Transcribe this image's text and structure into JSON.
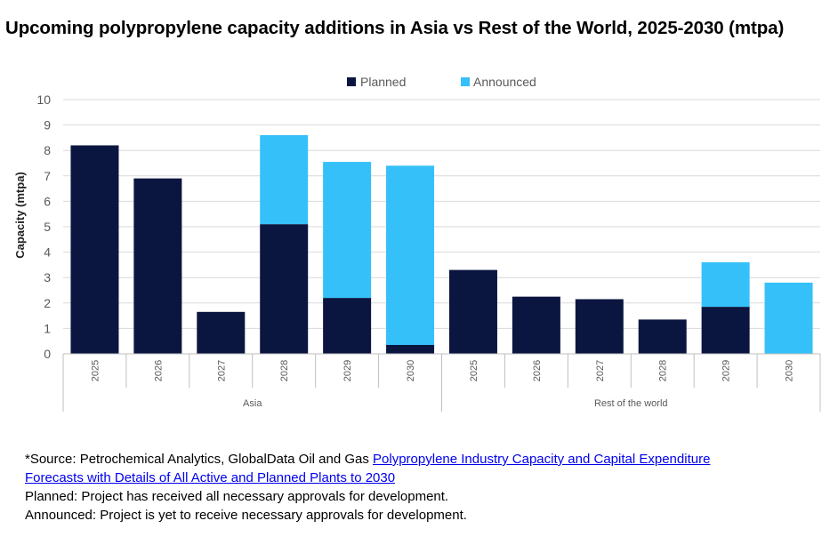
{
  "title": "Upcoming polypropylene capacity additions in Asia vs Rest of the World, 2025-2030 (mtpa)",
  "colors": {
    "planned": "#0b1640",
    "announced": "#35c0fa",
    "grid": "#d9d9d9",
    "axis": "#bfbfbf"
  },
  "chart_data": {
    "type": "bar",
    "stacked": true,
    "ylabel": "Capacity (mtpa)",
    "xlabel": "",
    "ylim": [
      0,
      10
    ],
    "yticks": [
      0,
      1,
      2,
      3,
      4,
      5,
      6,
      7,
      8,
      9,
      10
    ],
    "grid": true,
    "legend_position": "top",
    "groups": [
      "Asia",
      "Rest of the world"
    ],
    "categories": [
      "2025",
      "2026",
      "2027",
      "2028",
      "2029",
      "2030",
      "2025",
      "2026",
      "2027",
      "2028",
      "2029",
      "2030"
    ],
    "category_group": [
      "Asia",
      "Asia",
      "Asia",
      "Asia",
      "Asia",
      "Asia",
      "Rest of the world",
      "Rest of the world",
      "Rest of the world",
      "Rest of the world",
      "Rest of the world",
      "Rest of the world"
    ],
    "series": [
      {
        "name": "Planned",
        "values": [
          8.2,
          6.9,
          1.65,
          5.1,
          2.2,
          0.35,
          3.3,
          2.25,
          2.15,
          1.35,
          1.85,
          0
        ]
      },
      {
        "name": "Announced",
        "values": [
          0,
          0,
          0,
          3.5,
          5.35,
          7.05,
          0,
          0,
          0,
          0,
          1.75,
          2.8
        ]
      }
    ]
  },
  "notes": {
    "source_prefix": "*Source: Petrochemical Analytics, GlobalData Oil and Gas ",
    "source_link_line1": "Polypropylene Industry Capacity and Capital Expenditure",
    "source_link_line2": "Forecasts with Details of All Active and Planned Plants to 2030",
    "planned_note": "Planned: Project has received all necessary approvals for development.",
    "announced_note": "Announced: Project is yet to receive necessary approvals for development."
  }
}
